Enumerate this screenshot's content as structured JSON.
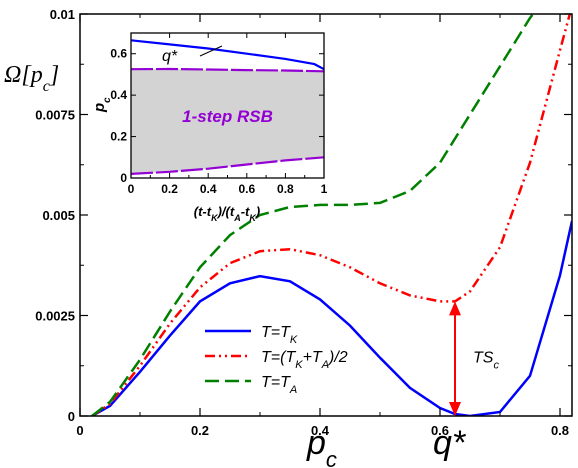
{
  "chart_data": [
    {
      "type": "line",
      "ylabel": "Ω[p",
      "ylabel_sub": "c",
      "ylabel_close": "]",
      "xlabel": "p",
      "xlabel_sub": "c",
      "xlim": [
        0,
        0.82
      ],
      "ylim": [
        0,
        0.01
      ],
      "x_ticks": [
        0,
        0.2,
        0.4,
        0.6,
        0.8
      ],
      "x_tick_labels": [
        "0",
        "0.2",
        "0.4",
        "0.6",
        "0.8"
      ],
      "y_ticks": [
        0,
        0.0025,
        0.005,
        0.0075,
        0.01
      ],
      "y_tick_labels": [
        "0",
        "0.0025",
        "0.005",
        "0.0075",
        "0.01"
      ],
      "x_special_label": "q*",
      "x_special_value": 0.625,
      "legend_position": "lower-left",
      "series": [
        {
          "name": "T=T_K",
          "legend_parts": [
            [
              "T=T",
              ""
            ],
            [
              "K",
              "sub"
            ]
          ],
          "color": "#0000ff",
          "dash": "solid",
          "x": [
            0.02,
            0.05,
            0.1,
            0.15,
            0.2,
            0.25,
            0.3,
            0.35,
            0.4,
            0.45,
            0.5,
            0.55,
            0.6,
            0.625,
            0.65,
            0.7,
            0.75,
            0.8,
            0.82
          ],
          "y": [
            0.0,
            0.00025,
            0.0011,
            0.002,
            0.00285,
            0.0033,
            0.00348,
            0.00335,
            0.0029,
            0.00225,
            0.00145,
            0.0007,
            0.0002,
            5e-05,
            0.0,
            0.0001,
            0.001,
            0.0035,
            0.00485
          ]
        },
        {
          "name": "T=(T_K+T_A)/2",
          "legend_parts": [
            [
              "T=(T",
              ""
            ],
            [
              "K",
              "sub"
            ],
            [
              "+T",
              ""
            ],
            [
              "A",
              "sub"
            ],
            [
              ")/2",
              ""
            ]
          ],
          "color": "#ff0000",
          "dash": "dash-dot-dot",
          "x": [
            0.02,
            0.05,
            0.1,
            0.15,
            0.2,
            0.25,
            0.3,
            0.35,
            0.4,
            0.45,
            0.5,
            0.55,
            0.6,
            0.625,
            0.65,
            0.7,
            0.75,
            0.8,
            0.82
          ],
          "y": [
            0.0,
            0.0003,
            0.00125,
            0.0023,
            0.0032,
            0.0038,
            0.0041,
            0.00415,
            0.004,
            0.0037,
            0.0033,
            0.003,
            0.00285,
            0.00285,
            0.0031,
            0.0042,
            0.0063,
            0.0091,
            0.0102
          ]
        },
        {
          "name": "T=T_A",
          "legend_parts": [
            [
              "T=T",
              ""
            ],
            [
              "A",
              "sub"
            ]
          ],
          "color": "#008000",
          "dash": "dashed",
          "x": [
            0.02,
            0.05,
            0.1,
            0.15,
            0.2,
            0.25,
            0.3,
            0.35,
            0.4,
            0.45,
            0.5,
            0.55,
            0.6,
            0.65,
            0.7,
            0.75,
            0.76
          ],
          "y": [
            0.0,
            0.00035,
            0.0014,
            0.0026,
            0.0037,
            0.0045,
            0.005,
            0.0052,
            0.00525,
            0.00525,
            0.0053,
            0.0056,
            0.0063,
            0.0075,
            0.0087,
            0.0099,
            0.0101
          ]
        }
      ],
      "annotation": {
        "label": "TS",
        "label_sub": "c",
        "x": 0.625,
        "y_from": 0.0,
        "y_to": 0.00285,
        "color": "#ff0000"
      }
    },
    {
      "type": "area",
      "xlabel_parts": [
        [
          "(t-t",
          ""
        ],
        [
          "K",
          "sub"
        ],
        [
          ")/(t",
          ""
        ],
        [
          "A",
          "sub"
        ],
        [
          "-t",
          ""
        ],
        [
          "K",
          "sub"
        ],
        [
          ")",
          ""
        ]
      ],
      "ylabel": "p",
      "ylabel_sub": "c",
      "xlim": [
        0,
        1
      ],
      "ylim": [
        0,
        0.7
      ],
      "x_ticks": [
        0,
        0.2,
        0.4,
        0.6,
        0.8,
        1
      ],
      "x_tick_labels": [
        "0",
        "0.2",
        "0.4",
        "0.6",
        "0.8",
        "1"
      ],
      "y_ticks": [
        0,
        0.2,
        0.4,
        0.6
      ],
      "y_tick_labels": [
        "0",
        "0.2",
        "0.4",
        "0.6"
      ],
      "region_label": "1-step RSB",
      "region_color": "#d3d3d3",
      "curve_label": "q*",
      "series": [
        {
          "name": "q*",
          "color": "#0000ff",
          "x": [
            0,
            0.2,
            0.4,
            0.6,
            0.8,
            0.95,
            1.0
          ],
          "y": [
            0.665,
            0.645,
            0.625,
            0.6,
            0.575,
            0.55,
            0.525
          ]
        },
        {
          "color": "#9400d3",
          "x": [
            0,
            0.2,
            0.4,
            0.6,
            0.8,
            1.0
          ],
          "y": [
            0.525,
            0.526,
            0.524,
            0.521,
            0.519,
            0.515
          ]
        },
        {
          "color": "#9400d3",
          "x": [
            0,
            0.2,
            0.4,
            0.6,
            0.8,
            1.0
          ],
          "y": [
            0.02,
            0.03,
            0.045,
            0.065,
            0.085,
            0.1
          ]
        }
      ]
    }
  ]
}
